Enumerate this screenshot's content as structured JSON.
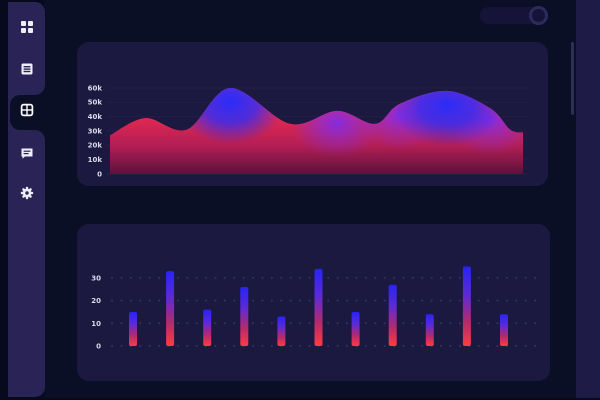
{
  "window": {
    "frame_color": "#060a1c",
    "main_bg": "#0a0f26",
    "panel_bg": "#1c1940",
    "sidebar_bg": "#2a2456",
    "right_strip_color": "#1f1b47"
  },
  "sidebar": {
    "items": [
      {
        "id": "dashboard",
        "icon": "grid-icon",
        "active": false
      },
      {
        "id": "list",
        "icon": "list-icon",
        "active": false
      },
      {
        "id": "apps",
        "icon": "table-icon",
        "active": true
      },
      {
        "id": "messages",
        "icon": "chat-icon",
        "active": false
      },
      {
        "id": "settings",
        "icon": "gear-icon",
        "active": false
      }
    ]
  },
  "chart_data": [
    {
      "type": "area",
      "title": "",
      "x_percent": [
        0,
        8.5,
        18.6,
        29.1,
        43.6,
        55,
        64.2,
        70.2,
        81.6,
        92,
        96.9,
        100
      ],
      "values_k": [
        27,
        39,
        31,
        60,
        35,
        44,
        35,
        49,
        58,
        46,
        31,
        29
      ],
      "ylabel_ticks": [
        "0",
        "10k",
        "20k",
        "30k",
        "40k",
        "50k",
        "60k"
      ],
      "ylim": [
        0,
        60000
      ],
      "grid": "faint-horizontal",
      "legend": "none",
      "colors": {
        "low": "#ff3a44",
        "mid": "#7d2cf0",
        "high": "#2b2cfa"
      }
    },
    {
      "type": "bar",
      "title": "",
      "values": [
        15,
        33,
        16,
        26,
        13,
        34,
        15,
        27,
        14,
        35,
        14
      ],
      "yticks": [
        0,
        10,
        20,
        30
      ],
      "ylim": [
        0,
        35
      ],
      "grid": "dotted-horizontal",
      "legend": "none",
      "colors": {
        "bottom": "#ff3a44",
        "top": "#2823f8"
      }
    }
  ]
}
